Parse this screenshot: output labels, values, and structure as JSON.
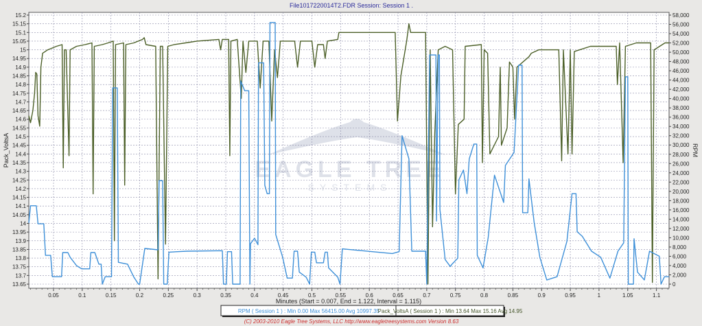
{
  "chart_data": {
    "type": "line",
    "title": "File1017220014T2.FDR   Session: Session 1 .",
    "xlabel": "Minutes (Start = 0.007,  End = 1.122,  Interval = 1.115)",
    "ylabel_left": "Pack_VoltsA",
    "ylabel_right": "RPM",
    "xlim": [
      0.007,
      1.122
    ],
    "ylim_left": [
      13.65,
      15.2
    ],
    "ylim_right": [
      0,
      58000
    ],
    "x_ticks": [
      0.05,
      0.1,
      0.15,
      0.2,
      0.25,
      0.3,
      0.35,
      0.4,
      0.45,
      0.5,
      0.55,
      0.6,
      0.65,
      0.7,
      0.75,
      0.8,
      0.85,
      0.9,
      0.95,
      1,
      1.05,
      1.1
    ],
    "y_left_ticks": [
      13.65,
      13.7,
      13.75,
      13.8,
      13.85,
      13.9,
      13.95,
      14,
      14.05,
      14.1,
      14.15,
      14.2,
      14.25,
      14.3,
      14.35,
      14.4,
      14.45,
      14.5,
      14.55,
      14.6,
      14.65,
      14.7,
      14.75,
      14.8,
      14.85,
      14.9,
      14.95,
      15,
      15.05,
      15.1,
      15.15,
      15.2
    ],
    "y_right_ticks": [
      0,
      2000,
      4000,
      6000,
      8000,
      10000,
      12000,
      14000,
      16000,
      18000,
      20000,
      22000,
      24000,
      26000,
      28000,
      30000,
      32000,
      34000,
      36000,
      38000,
      40000,
      42000,
      44000,
      46000,
      48000,
      50000,
      52000,
      54000,
      56000,
      58000
    ],
    "grid": true,
    "legend_placement": "bottom",
    "legend": [
      {
        "text": "RPM ( Session 1 ) : Min 0.00   Max 56415.00   Avg 10997.35",
        "color": "#3d8fd8"
      },
      {
        "text": "Pack_VoltsA ( Session 1 ) : Min 13.64   Max 15.16   Avg 14.95",
        "color": "#44552a"
      }
    ],
    "series": [
      {
        "name": "Pack_VoltsA",
        "axis": "left",
        "color": "#4b5f27",
        "points": [
          [
            0.007,
            14.62
          ],
          [
            0.01,
            14.58
          ],
          [
            0.014,
            14.65
          ],
          [
            0.017,
            14.75
          ],
          [
            0.019,
            14.87
          ],
          [
            0.021,
            14.86
          ],
          [
            0.023,
            14.62
          ],
          [
            0.026,
            14.56
          ],
          [
            0.028,
            14.9
          ],
          [
            0.031,
            14.98
          ],
          [
            0.04,
            15.0
          ],
          [
            0.055,
            15.02
          ],
          [
            0.065,
            15.03
          ],
          [
            0.067,
            14.32
          ],
          [
            0.069,
            15.0
          ],
          [
            0.072,
            15.0
          ],
          [
            0.077,
            14.39
          ],
          [
            0.079,
            15.0
          ],
          [
            0.09,
            15.02
          ],
          [
            0.105,
            15.03
          ],
          [
            0.117,
            15.04
          ],
          [
            0.119,
            14.17
          ],
          [
            0.121,
            15.02
          ],
          [
            0.135,
            15.03
          ],
          [
            0.145,
            15.04
          ],
          [
            0.154,
            15.05
          ],
          [
            0.156,
            13.9
          ],
          [
            0.158,
            15.03
          ],
          [
            0.172,
            15.04
          ],
          [
            0.174,
            14.22
          ],
          [
            0.176,
            15.03
          ],
          [
            0.19,
            15.04
          ],
          [
            0.205,
            15.06
          ],
          [
            0.208,
            15.07
          ],
          [
            0.211,
            15.03
          ],
          [
            0.228,
            15.02
          ],
          [
            0.232,
            13.68
          ],
          [
            0.236,
            15.02
          ],
          [
            0.24,
            15.02
          ],
          [
            0.245,
            13.88
          ],
          [
            0.249,
            15.02
          ],
          [
            0.26,
            15.03
          ],
          [
            0.28,
            15.04
          ],
          [
            0.3,
            15.05
          ],
          [
            0.338,
            15.06
          ],
          [
            0.341,
            15.0
          ],
          [
            0.344,
            15.06
          ],
          [
            0.355,
            15.06
          ],
          [
            0.357,
            14.39
          ],
          [
            0.359,
            15.05
          ],
          [
            0.37,
            15.06
          ],
          [
            0.377,
            14.72
          ],
          [
            0.38,
            15.05
          ],
          [
            0.385,
            14.87
          ],
          [
            0.39,
            15.05
          ],
          [
            0.405,
            15.05
          ],
          [
            0.41,
            14.78
          ],
          [
            0.415,
            15.05
          ],
          [
            0.425,
            15.05
          ],
          [
            0.43,
            14.59
          ],
          [
            0.435,
            15.0
          ],
          [
            0.44,
            14.84
          ],
          [
            0.445,
            15.05
          ],
          [
            0.47,
            15.05
          ],
          [
            0.475,
            14.9
          ],
          [
            0.48,
            15.05
          ],
          [
            0.5,
            15.05
          ],
          [
            0.505,
            14.9
          ],
          [
            0.51,
            15.03
          ],
          [
            0.52,
            15.03
          ],
          [
            0.523,
            14.95
          ],
          [
            0.527,
            15.05
          ],
          [
            0.545,
            15.06
          ],
          [
            0.547,
            15.1
          ],
          [
            0.645,
            15.1
          ],
          [
            0.649,
            14.59
          ],
          [
            0.655,
            14.85
          ],
          [
            0.665,
            15.05
          ],
          [
            0.669,
            15.15
          ],
          [
            0.672,
            15.1
          ],
          [
            0.698,
            15.1
          ],
          [
            0.702,
            13.65
          ],
          [
            0.706,
            15.0
          ],
          [
            0.71,
            13.98
          ],
          [
            0.714,
            14.52
          ],
          [
            0.72,
            15.0
          ],
          [
            0.732,
            15.02
          ],
          [
            0.745,
            15.0
          ],
          [
            0.75,
            14.17
          ],
          [
            0.755,
            14.57
          ],
          [
            0.765,
            14.6
          ],
          [
            0.767,
            15.02
          ],
          [
            0.795,
            15.03
          ],
          [
            0.797,
            14.35
          ],
          [
            0.8,
            15.0
          ],
          [
            0.806,
            14.98
          ],
          [
            0.81,
            14.4
          ],
          [
            0.825,
            14.5
          ],
          [
            0.828,
            14.9
          ],
          [
            0.83,
            14.45
          ],
          [
            0.84,
            14.55
          ],
          [
            0.844,
            14.93
          ],
          [
            0.85,
            14.9
          ],
          [
            0.853,
            14.6
          ],
          [
            0.857,
            14.9
          ],
          [
            0.878,
            14.96
          ],
          [
            0.882,
            14.98
          ],
          [
            0.895,
            15.0
          ],
          [
            0.93,
            15.0
          ],
          [
            0.935,
            14.36
          ],
          [
            0.938,
            15.0
          ],
          [
            0.946,
            14.4
          ],
          [
            0.95,
            15.0
          ],
          [
            0.953,
            14.4
          ],
          [
            0.957,
            14.99
          ],
          [
            0.985,
            15.02
          ],
          [
            1.03,
            15.02
          ],
          [
            1.032,
            14.8
          ],
          [
            1.036,
            15.04
          ],
          [
            1.042,
            14.35
          ],
          [
            1.046,
            15.02
          ],
          [
            1.065,
            15.04
          ],
          [
            1.09,
            15.04
          ],
          [
            1.093,
            13.66
          ],
          [
            1.096,
            15.0
          ],
          [
            1.115,
            15.04
          ],
          [
            1.122,
            15.04
          ]
        ]
      },
      {
        "name": "RPM",
        "axis": "right",
        "color": "#3d8fd8",
        "points": [
          [
            0.007,
            13200
          ],
          [
            0.01,
            16900
          ],
          [
            0.02,
            16900
          ],
          [
            0.023,
            13000
          ],
          [
            0.033,
            13000
          ],
          [
            0.036,
            6200
          ],
          [
            0.045,
            6200
          ],
          [
            0.048,
            1600
          ],
          [
            0.064,
            1600
          ],
          [
            0.066,
            6800
          ],
          [
            0.075,
            6800
          ],
          [
            0.079,
            5800
          ],
          [
            0.09,
            4000
          ],
          [
            0.099,
            3300
          ],
          [
            0.113,
            3300
          ],
          [
            0.115,
            6800
          ],
          [
            0.122,
            6800
          ],
          [
            0.129,
            4300
          ],
          [
            0.133,
            4300
          ],
          [
            0.135,
            0
          ],
          [
            0.14,
            1600
          ],
          [
            0.151,
            1600
          ],
          [
            0.153,
            42300
          ],
          [
            0.161,
            42300
          ],
          [
            0.163,
            4700
          ],
          [
            0.179,
            4300
          ],
          [
            0.19,
            1500
          ],
          [
            0.198,
            0
          ],
          [
            0.2,
            0
          ],
          [
            0.209,
            7700
          ],
          [
            0.232,
            7400
          ],
          [
            0.234,
            22300
          ],
          [
            0.24,
            22300
          ],
          [
            0.242,
            0
          ],
          [
            0.248,
            0
          ],
          [
            0.251,
            6900
          ],
          [
            0.282,
            7100
          ],
          [
            0.344,
            7200
          ],
          [
            0.346,
            0
          ],
          [
            0.351,
            0
          ],
          [
            0.353,
            7000
          ],
          [
            0.36,
            7000
          ],
          [
            0.362,
            0
          ],
          [
            0.375,
            0
          ],
          [
            0.376,
            43800
          ],
          [
            0.383,
            41700
          ],
          [
            0.39,
            41700
          ],
          [
            0.392,
            0
          ],
          [
            0.393,
            8700
          ],
          [
            0.4,
            9900
          ],
          [
            0.406,
            8500
          ],
          [
            0.407,
            47700
          ],
          [
            0.416,
            47700
          ],
          [
            0.418,
            21300
          ],
          [
            0.422,
            19500
          ],
          [
            0.426,
            19500
          ],
          [
            0.427,
            56400
          ],
          [
            0.436,
            56400
          ],
          [
            0.437,
            10700
          ],
          [
            0.449,
            5800
          ],
          [
            0.457,
            1300
          ],
          [
            0.466,
            1300
          ],
          [
            0.469,
            7100
          ],
          [
            0.475,
            7100
          ],
          [
            0.478,
            2600
          ],
          [
            0.49,
            1500
          ],
          [
            0.496,
            0
          ],
          [
            0.499,
            6900
          ],
          [
            0.505,
            6900
          ],
          [
            0.508,
            4600
          ],
          [
            0.52,
            4600
          ],
          [
            0.523,
            6900
          ],
          [
            0.527,
            6900
          ],
          [
            0.529,
            3500
          ],
          [
            0.545,
            1500
          ],
          [
            0.549,
            0
          ],
          [
            0.553,
            7600
          ],
          [
            0.64,
            6600
          ],
          [
            0.652,
            7000
          ],
          [
            0.657,
            32000
          ],
          [
            0.669,
            27000
          ],
          [
            0.674,
            7100
          ],
          [
            0.698,
            7100
          ],
          [
            0.7,
            0
          ],
          [
            0.705,
            49400
          ],
          [
            0.716,
            49400
          ],
          [
            0.717,
            13600
          ],
          [
            0.72,
            49400
          ],
          [
            0.722,
            49400
          ],
          [
            0.723,
            16100
          ],
          [
            0.732,
            5300
          ],
          [
            0.741,
            3800
          ],
          [
            0.744,
            4300
          ],
          [
            0.754,
            5600
          ],
          [
            0.756,
            22500
          ],
          [
            0.764,
            24600
          ],
          [
            0.77,
            19500
          ],
          [
            0.774,
            27000
          ],
          [
            0.782,
            30200
          ],
          [
            0.787,
            30200
          ],
          [
            0.788,
            6200
          ],
          [
            0.798,
            3500
          ],
          [
            0.807,
            10000
          ],
          [
            0.818,
            23500
          ],
          [
            0.834,
            17600
          ],
          [
            0.837,
            25600
          ],
          [
            0.852,
            28400
          ],
          [
            0.86,
            47200
          ],
          [
            0.866,
            47200
          ],
          [
            0.867,
            15400
          ],
          [
            0.876,
            15400
          ],
          [
            0.878,
            22700
          ],
          [
            0.887,
            13300
          ],
          [
            0.897,
            5800
          ],
          [
            0.909,
            900
          ],
          [
            0.927,
            1600
          ],
          [
            0.944,
            9200
          ],
          [
            0.953,
            19500
          ],
          [
            0.96,
            19500
          ],
          [
            0.962,
            11300
          ],
          [
            0.971,
            10300
          ],
          [
            0.987,
            7100
          ],
          [
            1.003,
            5800
          ],
          [
            1.019,
            1300
          ],
          [
            1.033,
            7100
          ],
          [
            1.043,
            8900
          ],
          [
            1.046,
            44700
          ],
          [
            1.05,
            44700
          ],
          [
            1.051,
            0
          ],
          [
            1.06,
            0
          ],
          [
            1.061,
            9800
          ],
          [
            1.067,
            2600
          ],
          [
            1.079,
            900
          ],
          [
            1.088,
            7100
          ],
          [
            1.105,
            6000
          ],
          [
            1.108,
            0
          ],
          [
            1.114,
            1600
          ],
          [
            1.122,
            1600
          ]
        ]
      }
    ]
  },
  "watermark": {
    "line1": "EAGLE TREE",
    "line2": "SYSTEMS"
  },
  "footer": "(C) 2003-2010 Eagle Tree Systems, LLC     http://www.eagletreesystems.com     Version 8.63",
  "colors": {
    "title": "#2a2a9a",
    "footer": "#cc2b2b",
    "grid": "#8a8aa8"
  }
}
